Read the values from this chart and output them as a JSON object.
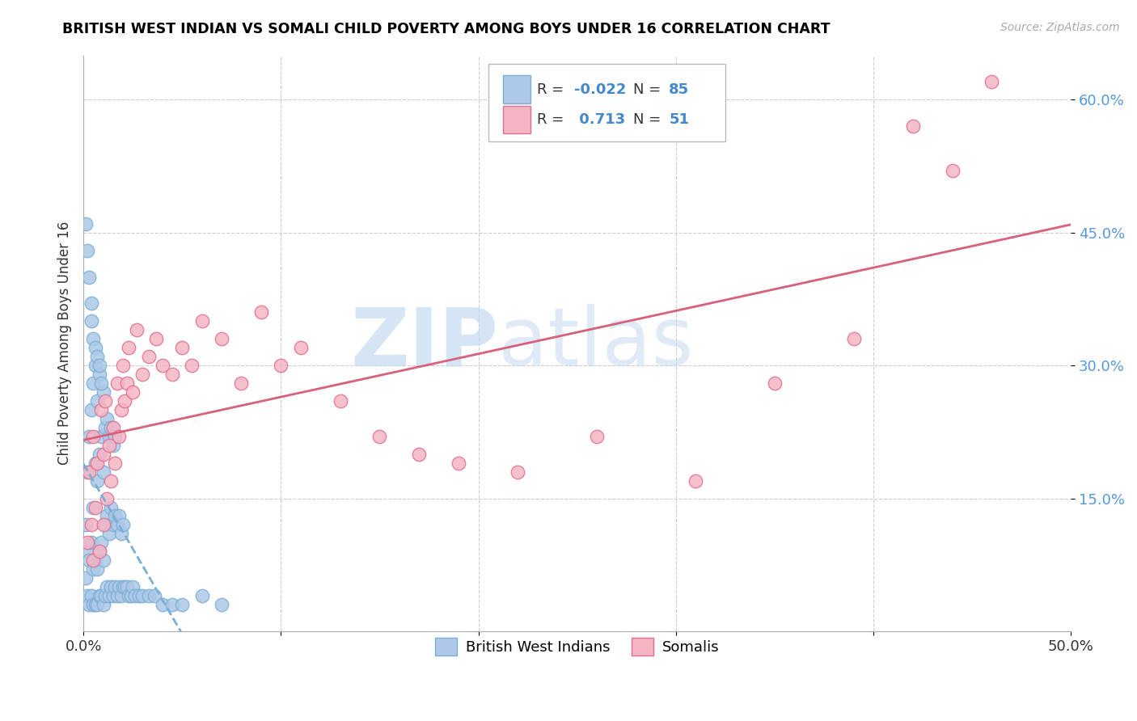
{
  "title": "BRITISH WEST INDIAN VS SOMALI CHILD POVERTY AMONG BOYS UNDER 16 CORRELATION CHART",
  "source": "Source: ZipAtlas.com",
  "ylabel": "Child Poverty Among Boys Under 16",
  "xlim": [
    0.0,
    0.5
  ],
  "ylim": [
    0.0,
    0.65
  ],
  "xtick_positions": [
    0.0,
    0.1,
    0.2,
    0.3,
    0.4,
    0.5
  ],
  "xtick_labels": [
    "0.0%",
    "",
    "",
    "",
    "",
    "50.0%"
  ],
  "ytick_positions": [
    0.15,
    0.3,
    0.45,
    0.6
  ],
  "ytick_labels": [
    "15.0%",
    "30.0%",
    "45.0%",
    "60.0%"
  ],
  "R1": "-0.022",
  "N1": "85",
  "R2": "0.713",
  "N2": "51",
  "color_blue_fill": "#adc8e8",
  "color_blue_edge": "#7aafd4",
  "color_pink_fill": "#f5b5c5",
  "color_pink_edge": "#e07090",
  "color_blue_line": "#7aafd4",
  "color_pink_line": "#d9607a",
  "color_ytick": "#5599dd",
  "watermark_zip": "ZIP",
  "watermark_atlas": "atlas",
  "label_bwi": "British West Indians",
  "label_somali": "Somalis",
  "bwi_x": [
    0.001,
    0.001,
    0.002,
    0.002,
    0.002,
    0.003,
    0.003,
    0.003,
    0.004,
    0.004,
    0.004,
    0.004,
    0.005,
    0.005,
    0.005,
    0.005,
    0.006,
    0.006,
    0.006,
    0.006,
    0.007,
    0.007,
    0.007,
    0.007,
    0.008,
    0.008,
    0.008,
    0.008,
    0.009,
    0.009,
    0.009,
    0.01,
    0.01,
    0.01,
    0.01,
    0.011,
    0.011,
    0.011,
    0.012,
    0.012,
    0.012,
    0.013,
    0.013,
    0.013,
    0.014,
    0.014,
    0.014,
    0.015,
    0.015,
    0.015,
    0.016,
    0.016,
    0.016,
    0.017,
    0.017,
    0.018,
    0.018,
    0.019,
    0.019,
    0.02,
    0.02,
    0.021,
    0.022,
    0.023,
    0.024,
    0.025,
    0.026,
    0.028,
    0.03,
    0.033,
    0.036,
    0.04,
    0.045,
    0.05,
    0.06,
    0.07,
    0.001,
    0.002,
    0.003,
    0.004,
    0.005,
    0.006,
    0.007,
    0.008,
    0.009
  ],
  "bwi_y": [
    0.06,
    0.12,
    0.04,
    0.09,
    0.18,
    0.03,
    0.08,
    0.22,
    0.04,
    0.1,
    0.25,
    0.35,
    0.03,
    0.07,
    0.14,
    0.28,
    0.03,
    0.08,
    0.19,
    0.3,
    0.03,
    0.07,
    0.17,
    0.26,
    0.04,
    0.09,
    0.2,
    0.29,
    0.04,
    0.1,
    0.22,
    0.03,
    0.08,
    0.18,
    0.27,
    0.04,
    0.12,
    0.23,
    0.05,
    0.13,
    0.24,
    0.04,
    0.11,
    0.22,
    0.05,
    0.14,
    0.23,
    0.04,
    0.12,
    0.21,
    0.05,
    0.13,
    0.22,
    0.04,
    0.12,
    0.05,
    0.13,
    0.04,
    0.11,
    0.05,
    0.12,
    0.05,
    0.05,
    0.04,
    0.04,
    0.05,
    0.04,
    0.04,
    0.04,
    0.04,
    0.04,
    0.03,
    0.03,
    0.03,
    0.04,
    0.03,
    0.46,
    0.43,
    0.4,
    0.37,
    0.33,
    0.32,
    0.31,
    0.3,
    0.28
  ],
  "somali_x": [
    0.002,
    0.003,
    0.004,
    0.005,
    0.005,
    0.006,
    0.007,
    0.008,
    0.009,
    0.01,
    0.01,
    0.011,
    0.012,
    0.013,
    0.014,
    0.015,
    0.016,
    0.017,
    0.018,
    0.019,
    0.02,
    0.021,
    0.022,
    0.023,
    0.025,
    0.027,
    0.03,
    0.033,
    0.037,
    0.04,
    0.045,
    0.05,
    0.055,
    0.06,
    0.07,
    0.08,
    0.09,
    0.1,
    0.11,
    0.13,
    0.15,
    0.17,
    0.19,
    0.22,
    0.26,
    0.31,
    0.35,
    0.39,
    0.42,
    0.44,
    0.46
  ],
  "somali_y": [
    0.1,
    0.18,
    0.12,
    0.08,
    0.22,
    0.14,
    0.19,
    0.09,
    0.25,
    0.12,
    0.2,
    0.26,
    0.15,
    0.21,
    0.17,
    0.23,
    0.19,
    0.28,
    0.22,
    0.25,
    0.3,
    0.26,
    0.28,
    0.32,
    0.27,
    0.34,
    0.29,
    0.31,
    0.33,
    0.3,
    0.29,
    0.32,
    0.3,
    0.35,
    0.33,
    0.28,
    0.36,
    0.3,
    0.32,
    0.26,
    0.22,
    0.2,
    0.19,
    0.18,
    0.22,
    0.17,
    0.28,
    0.33,
    0.57,
    0.52,
    0.62
  ]
}
